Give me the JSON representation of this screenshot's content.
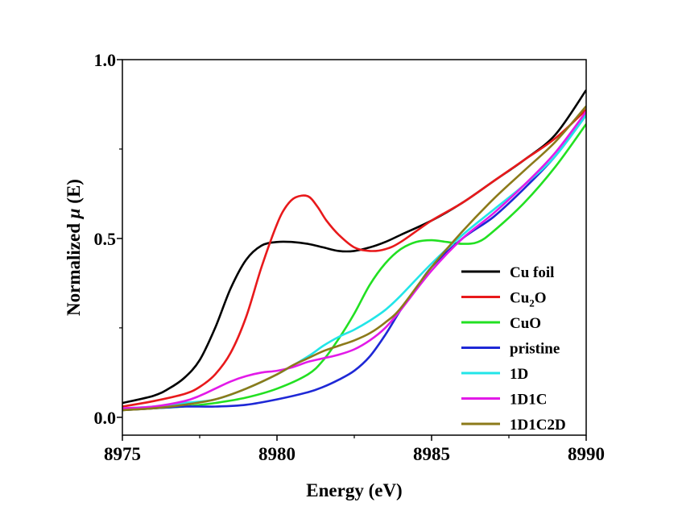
{
  "chart_data": {
    "type": "line",
    "xlabel": "Energy (eV)",
    "ylabel_prefix": "Normalized ",
    "ylabel_mu": "μ",
    "ylabel_suffix": " (E)",
    "xlim": [
      8975,
      8990
    ],
    "ylim": [
      -0.05,
      1.0
    ],
    "xticks": [
      8975,
      8980,
      8985,
      8990
    ],
    "xtick_labels": [
      "8975",
      "8980",
      "8985",
      "8990"
    ],
    "yticks": [
      0.0,
      0.5,
      1.0
    ],
    "ytick_labels": [
      "0.0",
      "0.5",
      "1.0"
    ],
    "grid": false,
    "legend_position": "bottom-right",
    "series": [
      {
        "name": "Cu foil",
        "color": "#000000",
        "x": [
          8975,
          8976,
          8976.5,
          8977,
          8977.5,
          8978,
          8978.5,
          8979,
          8979.5,
          8980,
          8980.5,
          8981,
          8981.5,
          8982,
          8982.5,
          8983,
          8983.5,
          8984,
          8985,
          8986,
          8987,
          8988,
          8989,
          8990
        ],
        "y": [
          0.04,
          0.06,
          0.08,
          0.11,
          0.16,
          0.25,
          0.36,
          0.44,
          0.48,
          0.49,
          0.49,
          0.485,
          0.475,
          0.465,
          0.465,
          0.475,
          0.49,
          0.51,
          0.55,
          0.6,
          0.66,
          0.72,
          0.79,
          0.915
        ]
      },
      {
        "name": "Cu₂O",
        "color": "#e8191b",
        "x": [
          8975,
          8976,
          8977,
          8977.5,
          8978,
          8978.5,
          8979,
          8979.5,
          8980,
          8980.3,
          8980.6,
          8981,
          8981.3,
          8981.6,
          8982,
          8982.5,
          8983,
          8983.5,
          8984,
          8985,
          8986,
          8987,
          8988,
          8989,
          8990
        ],
        "y": [
          0.03,
          0.045,
          0.065,
          0.085,
          0.12,
          0.18,
          0.28,
          0.42,
          0.54,
          0.59,
          0.615,
          0.618,
          0.59,
          0.55,
          0.51,
          0.475,
          0.465,
          0.47,
          0.49,
          0.55,
          0.6,
          0.66,
          0.72,
          0.78,
          0.86
        ]
      },
      {
        "name": "CuO",
        "color": "#22e022",
        "x": [
          8975,
          8976,
          8977,
          8978,
          8979,
          8980,
          8981,
          8981.5,
          8982,
          8982.5,
          8983,
          8983.5,
          8984,
          8984.5,
          8985,
          8985.5,
          8986,
          8986.5,
          8987,
          8988,
          8989,
          8990
        ],
        "y": [
          0.02,
          0.025,
          0.03,
          0.04,
          0.055,
          0.08,
          0.12,
          0.16,
          0.22,
          0.29,
          0.37,
          0.43,
          0.47,
          0.49,
          0.495,
          0.49,
          0.485,
          0.49,
          0.52,
          0.6,
          0.7,
          0.82
        ]
      },
      {
        "name": "pristine",
        "color": "#1e28d6",
        "x": [
          8975,
          8976,
          8977,
          8978,
          8979,
          8980,
          8981,
          8981.5,
          8982,
          8982.5,
          8983,
          8983.5,
          8984,
          8984.5,
          8985,
          8986,
          8987,
          8988,
          8989,
          8990
        ],
        "y": [
          0.02,
          0.025,
          0.03,
          0.03,
          0.035,
          0.05,
          0.07,
          0.085,
          0.105,
          0.13,
          0.17,
          0.23,
          0.3,
          0.36,
          0.42,
          0.5,
          0.56,
          0.64,
          0.73,
          0.845
        ]
      },
      {
        "name": "1D",
        "color": "#22e5e8",
        "x": [
          8975,
          8976,
          8977,
          8978,
          8979,
          8980,
          8981,
          8981.5,
          8982,
          8982.5,
          8983,
          8983.5,
          8984,
          8985,
          8986,
          8987,
          8988,
          8989,
          8990
        ],
        "y": [
          0.025,
          0.03,
          0.04,
          0.05,
          0.08,
          0.12,
          0.17,
          0.2,
          0.225,
          0.245,
          0.27,
          0.3,
          0.34,
          0.43,
          0.51,
          0.58,
          0.65,
          0.73,
          0.845
        ]
      },
      {
        "name": "1D1C",
        "color": "#e21ae8",
        "x": [
          8975,
          8976,
          8977,
          8977.5,
          8978,
          8978.5,
          8979,
          8979.5,
          8980,
          8980.5,
          8981,
          8981.5,
          8982,
          8982.5,
          8983,
          8983.5,
          8984,
          8985,
          8986,
          8987,
          8988,
          8989,
          8990
        ],
        "y": [
          0.025,
          0.03,
          0.045,
          0.06,
          0.08,
          0.1,
          0.115,
          0.125,
          0.13,
          0.14,
          0.155,
          0.165,
          0.175,
          0.19,
          0.215,
          0.25,
          0.3,
          0.41,
          0.5,
          0.57,
          0.65,
          0.74,
          0.855
        ]
      },
      {
        "name": "1D1C2D",
        "color": "#8c7a1a",
        "x": [
          8975,
          8976,
          8977,
          8978,
          8979,
          8980,
          8980.5,
          8981,
          8981.5,
          8982,
          8982.5,
          8983,
          8983.5,
          8984,
          8985,
          8986,
          8987,
          8988,
          8989,
          8990
        ],
        "y": [
          0.02,
          0.025,
          0.035,
          0.05,
          0.08,
          0.12,
          0.145,
          0.165,
          0.185,
          0.2,
          0.215,
          0.235,
          0.265,
          0.305,
          0.42,
          0.52,
          0.61,
          0.69,
          0.77,
          0.87
        ]
      }
    ]
  }
}
